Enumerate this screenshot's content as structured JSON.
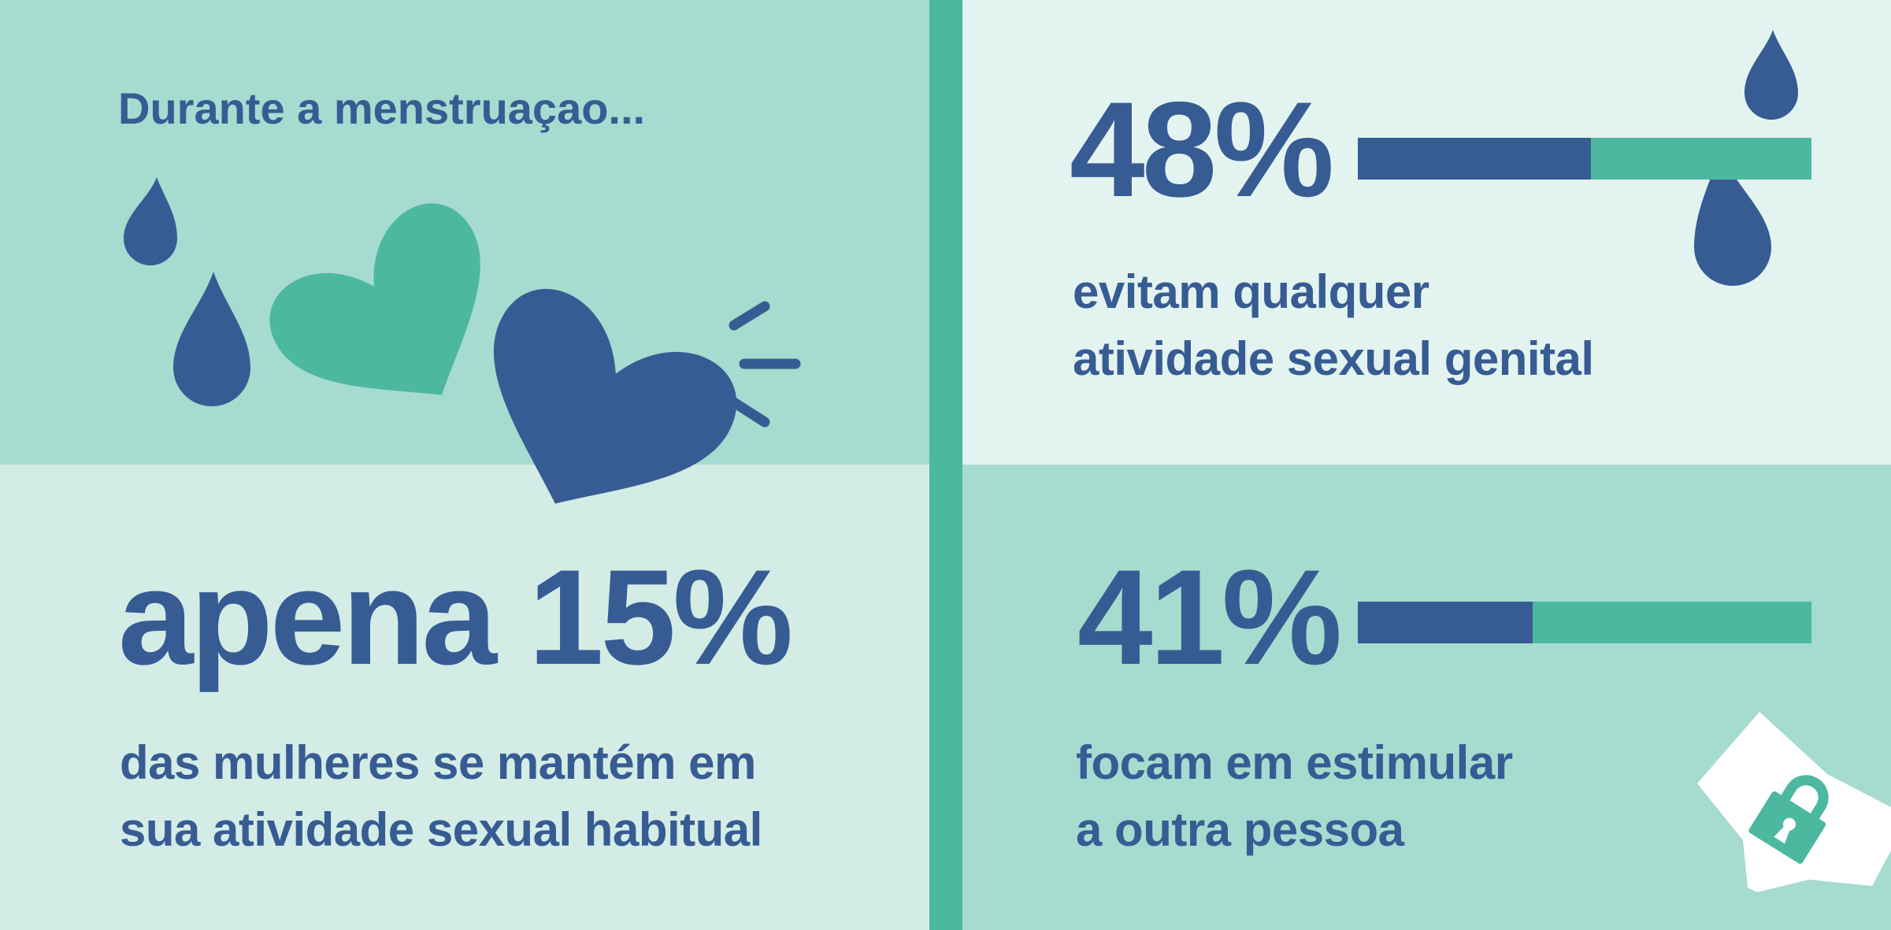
{
  "colors": {
    "text": "#375C93",
    "accent": "#4CB8A0",
    "panel_mid": "#A6DBCF",
    "panel_light": "#D3ECE6",
    "panel_lighter": "#E3F4F0",
    "white": "#FFFFFF"
  },
  "intro": {
    "title": "Durante a menstruaçao..."
  },
  "stat1": {
    "value": "48%",
    "percent": 48,
    "lines": [
      "evitam qualquer",
      "atividade sexual genital"
    ]
  },
  "stat2": {
    "prefix": "apena",
    "value": "15%",
    "lines": [
      "das mulheres se mantém em",
      "sua atividade sexual habitual"
    ]
  },
  "stat3": {
    "value": "41%",
    "percent": 41,
    "lines": [
      "focam em estimular",
      "a outra pessoa"
    ]
  },
  "icons": [
    "drop-icon",
    "heart-icon",
    "sparkle-lines-icon",
    "underwear-icon",
    "padlock-icon"
  ]
}
